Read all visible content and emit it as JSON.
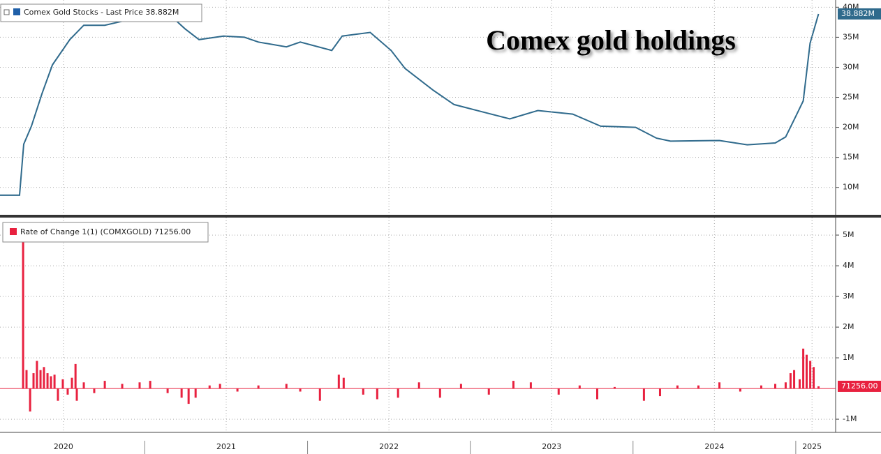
{
  "chart_data": [
    {
      "type": "line",
      "title": "Comex gold holdings",
      "series": [
        {
          "name": "Comex Gold Stocks - Last Price 38.882M",
          "color": "#2f6a8c",
          "x": [
            2020.11,
            2020.23,
            2020.256,
            2020.303,
            2020.368,
            2020.432,
            2020.539,
            2020.625,
            2020.754,
            2020.883,
            2021.054,
            2021.174,
            2021.247,
            2021.333,
            2021.483,
            2021.612,
            2021.698,
            2021.87,
            2021.955,
            2022.149,
            2022.213,
            2022.385,
            2022.513,
            2022.599,
            2022.771,
            2022.9,
            2023.071,
            2023.243,
            2023.415,
            2023.629,
            2023.801,
            2024.016,
            2024.144,
            2024.23,
            2024.531,
            2024.702,
            2024.874,
            2024.938,
            2025.003,
            2025.046,
            2025.088,
            2025.14
          ],
          "values": [
            8.7,
            8.7,
            17.2,
            20.2,
            25.6,
            30.4,
            34.6,
            37.0,
            37.0,
            37.8,
            38.8,
            38.2,
            36.4,
            34.6,
            35.2,
            35.0,
            34.2,
            33.4,
            34.2,
            32.8,
            35.2,
            35.8,
            32.8,
            29.8,
            26.2,
            23.8,
            22.6,
            21.4,
            22.8,
            22.2,
            20.2,
            20.0,
            18.2,
            17.7,
            17.8,
            17.1,
            17.4,
            18.4,
            22.0,
            24.4,
            34.0,
            38.882
          ],
          "last_value_label": "38.882M"
        }
      ],
      "xlim": [
        2020.11,
        2025.245
      ],
      "ylim": [
        5.44,
        41.2
      ],
      "yticks": [
        {
          "value": 10,
          "label": "10M"
        },
        {
          "value": 15,
          "label": "15M"
        },
        {
          "value": 20,
          "label": "20M"
        },
        {
          "value": 25,
          "label": "25M"
        },
        {
          "value": 30,
          "label": "30M"
        },
        {
          "value": 35,
          "label": "35M"
        },
        {
          "value": 40,
          "label": "40M"
        }
      ],
      "grid": true
    },
    {
      "type": "bar",
      "series": [
        {
          "name": "Rate of Change 1(1) (COMXGOLD) 71256.00",
          "color": "#e8213f",
          "x": [
            2020.252,
            2020.273,
            2020.295,
            2020.316,
            2020.337,
            2020.359,
            2020.38,
            2020.402,
            2020.423,
            2020.445,
            2020.466,
            2020.496,
            2020.526,
            2020.552,
            2020.574,
            2020.582,
            2020.625,
            2020.689,
            2020.754,
            2020.861,
            2020.968,
            2021.033,
            2021.14,
            2021.226,
            2021.269,
            2021.312,
            2021.398,
            2021.462,
            2021.569,
            2021.698,
            2021.87,
            2021.955,
            2022.076,
            2022.192,
            2022.222,
            2022.342,
            2022.428,
            2022.556,
            2022.685,
            2022.814,
            2022.943,
            2023.114,
            2023.265,
            2023.372,
            2023.543,
            2023.672,
            2023.78,
            2023.887,
            2024.067,
            2024.166,
            2024.273,
            2024.402,
            2024.531,
            2024.659,
            2024.788,
            2024.874,
            2024.938,
            2024.968,
            2024.99,
            2025.024,
            2025.046,
            2025.067,
            2025.089,
            2025.11,
            2025.14
          ],
          "values": [
            5.05,
            0.6,
            -0.75,
            0.5,
            0.9,
            0.6,
            0.7,
            0.5,
            0.4,
            0.45,
            -0.4,
            0.3,
            -0.2,
            0.35,
            0.8,
            -0.4,
            0.2,
            -0.15,
            0.25,
            0.15,
            0.2,
            0.25,
            -0.15,
            -0.3,
            -0.5,
            -0.3,
            0.1,
            0.15,
            -0.1,
            0.1,
            0.15,
            -0.1,
            -0.4,
            0.45,
            0.35,
            -0.2,
            -0.35,
            -0.3,
            0.2,
            -0.3,
            0.15,
            -0.2,
            0.25,
            0.2,
            -0.2,
            0.1,
            -0.35,
            0.05,
            -0.4,
            -0.25,
            0.1,
            0.1,
            0.2,
            -0.1,
            0.1,
            0.15,
            0.2,
            0.5,
            0.6,
            0.3,
            1.3,
            1.1,
            0.9,
            0.7,
            0.071256
          ],
          "last_value_label": "71256.00"
        }
      ],
      "xlim": [
        2020.11,
        2025.245
      ],
      "xticks": [
        {
          "value": 2020.5,
          "label": "2020"
        },
        {
          "value": 2021.5,
          "label": "2021"
        },
        {
          "value": 2022.5,
          "label": "2022"
        },
        {
          "value": 2023.5,
          "label": "2023"
        },
        {
          "value": 2024.5,
          "label": "2024"
        },
        {
          "value": 2025.1,
          "label": "2025"
        }
      ],
      "ylim": [
        -1.43,
        5.57
      ],
      "yticks": [
        {
          "value": -1,
          "label": "-1M"
        },
        {
          "value": 1,
          "label": "1M"
        },
        {
          "value": 2,
          "label": "2M"
        },
        {
          "value": 3,
          "label": "3M"
        },
        {
          "value": 4,
          "label": "4M"
        },
        {
          "value": 5,
          "label": "5M"
        }
      ],
      "grid": true
    }
  ]
}
